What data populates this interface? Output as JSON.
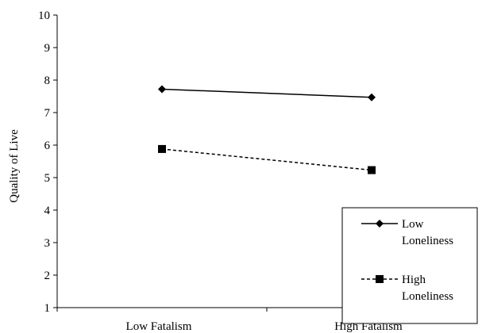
{
  "chart_data": {
    "type": "line",
    "title": "",
    "xlabel": "",
    "ylabel": "Quality of Live",
    "categories": [
      "Low Fatalism",
      "High Fatalism"
    ],
    "ylim": [
      1,
      10
    ],
    "yticks": [
      1,
      2,
      3,
      4,
      5,
      6,
      7,
      8,
      9,
      10
    ],
    "grid": false,
    "legend_position": "bottom-right",
    "series": [
      {
        "name": "Low Loneliness",
        "legend_lines": [
          "Low",
          "Loneliness"
        ],
        "values": [
          7.72,
          7.47
        ],
        "line_style": "solid",
        "marker": "diamond",
        "color": "#000000"
      },
      {
        "name": "High Loneliness",
        "legend_lines": [
          "High",
          "Loneliness"
        ],
        "values": [
          5.88,
          5.23
        ],
        "line_style": "dashed",
        "marker": "square",
        "color": "#000000"
      }
    ]
  }
}
